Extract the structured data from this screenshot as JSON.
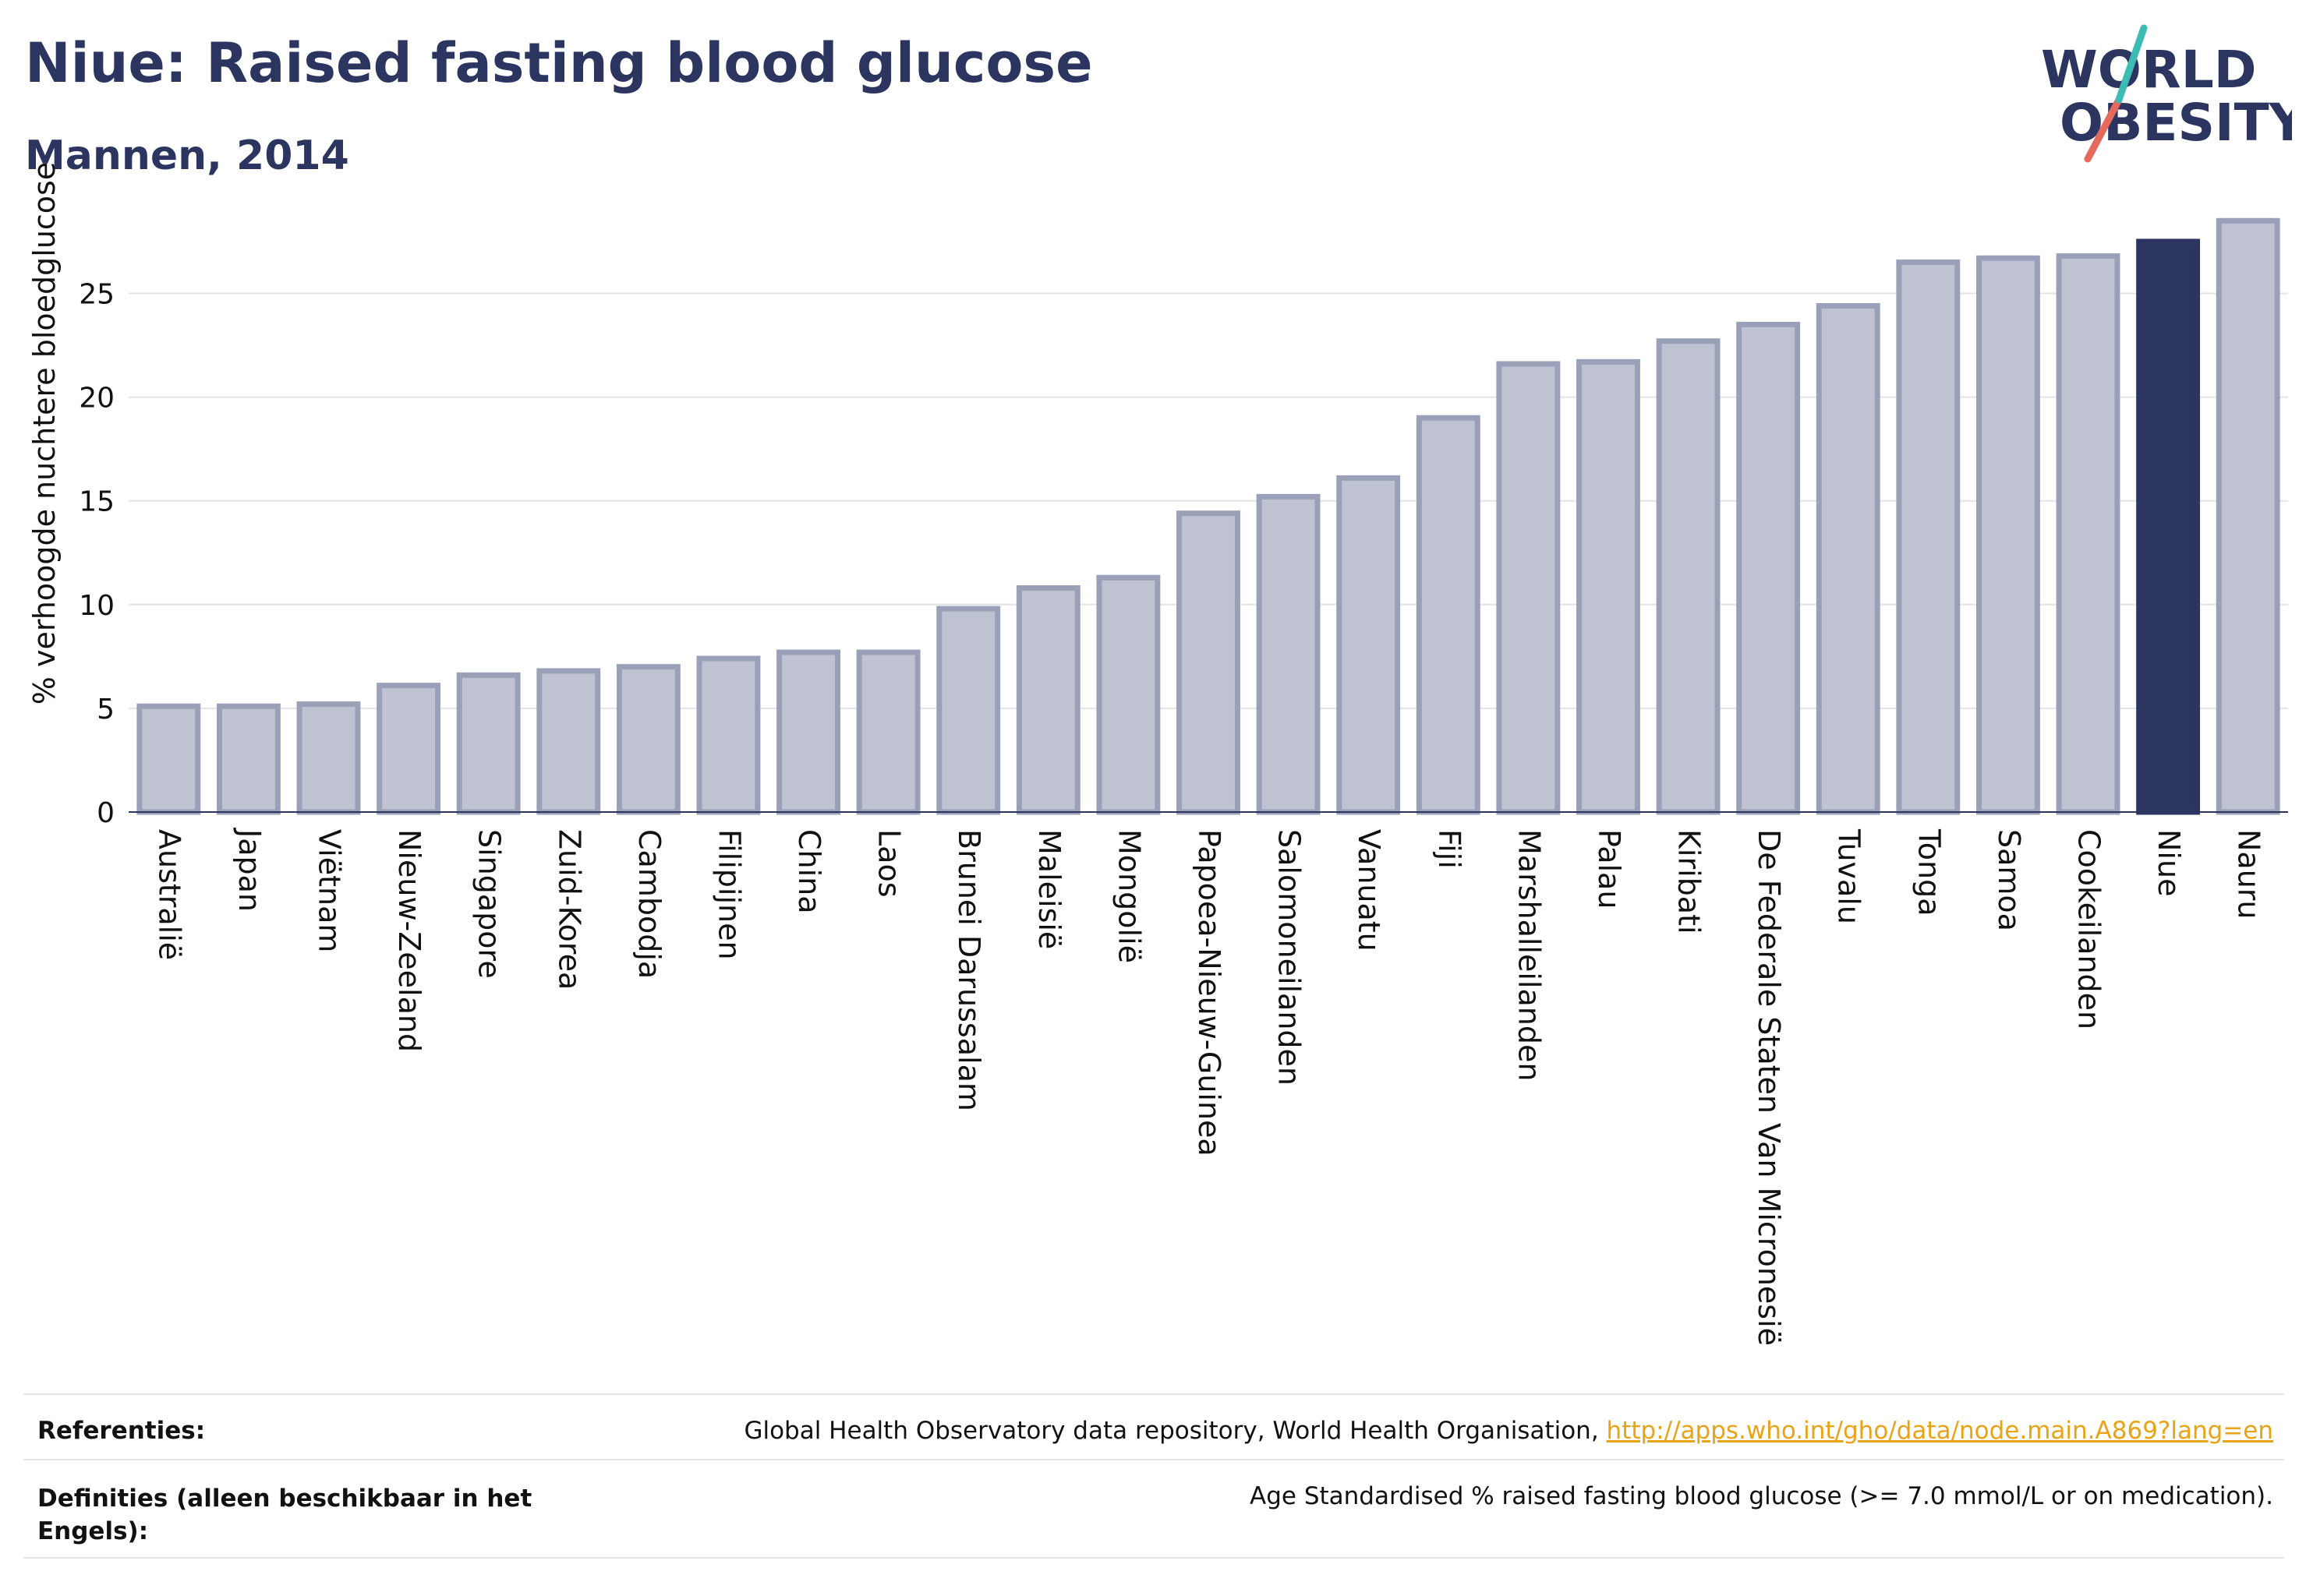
{
  "header": {
    "title": "Niue: Raised fasting blood glucose",
    "subtitle": "Mannen, 2014"
  },
  "logo": {
    "line1": "WORLD",
    "line2": "OBESITY"
  },
  "colors": {
    "highlight": "#2b3560",
    "bar_fill": "#bfc3d1",
    "bar_stroke": "#9aa0b8",
    "text": "#2b3560",
    "link": "#e8a317"
  },
  "chart_data": {
    "type": "bar",
    "ylabel": "% verhoogde nuchtere bloedglucose",
    "xlabel": "",
    "ylim": [
      0,
      29
    ],
    "yticks": [
      0,
      5,
      10,
      15,
      20,
      25
    ],
    "grid": true,
    "highlight": "Niue",
    "categories": [
      "Australië",
      "Japan",
      "Viëtnam",
      "Nieuw-Zeeland",
      "Singapore",
      "Zuid-Korea",
      "Cambodja",
      "Filipijnen",
      "China",
      "Laos",
      "Brunei Darussalam",
      "Maleisië",
      "Mongolië",
      "Papoea-Nieuw-Guinea",
      "Salomoneilanden",
      "Vanuatu",
      "Fiji",
      "Marshalleilanden",
      "Palau",
      "Kiribati",
      "De Federale Staten Van Micronesië",
      "Tuvalu",
      "Tonga",
      "Samoa",
      "Cookeilanden",
      "Niue",
      "Nauru"
    ],
    "values": [
      5.1,
      5.1,
      5.2,
      6.1,
      6.6,
      6.8,
      7.0,
      7.4,
      7.7,
      7.7,
      9.8,
      10.8,
      11.3,
      14.4,
      15.2,
      16.1,
      19.0,
      21.6,
      21.7,
      22.7,
      23.5,
      24.4,
      26.5,
      26.7,
      26.8,
      27.5,
      28.5
    ]
  },
  "footer": {
    "references_label": "Referenties:",
    "references_text": "Global Health Observatory data repository, World Health Organisation, ",
    "references_link": "http://apps.who.int/gho/data/node.main.A869?lang=en",
    "definitions_label": "Definities (alleen beschikbaar in het Engels):",
    "definitions_text": "Age Standardised % raised fasting blood glucose (>= 7.0 mmol/L or on medication)."
  }
}
